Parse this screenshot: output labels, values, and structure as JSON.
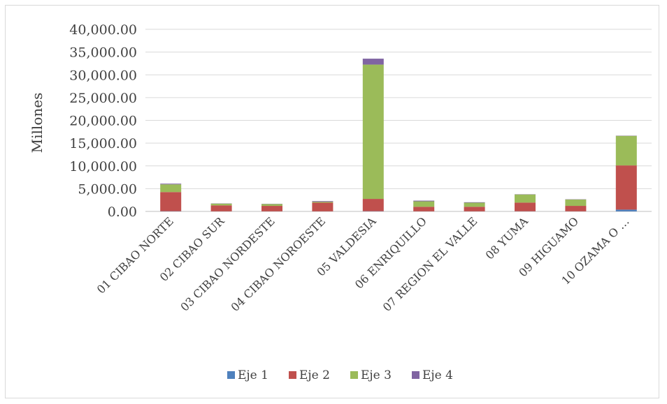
{
  "chart_data": {
    "type": "bar",
    "stacked": true,
    "title": "",
    "xlabel": "",
    "ylabel": "Millones",
    "ylim": [
      0,
      40000
    ],
    "yticks": [
      "0.00",
      "5,000.00",
      "10,000.00",
      "15,000.00",
      "20,000.00",
      "25,000.00",
      "30,000.00",
      "35,000.00",
      "40,000.00"
    ],
    "grid": true,
    "legend_position": "bottom",
    "categories": [
      "01 CIBAO NORTE",
      "02 CIBAO SUR",
      "03 CIBAO NORDESTE",
      "04 CIBAO NOROESTE",
      "05 VALDESIA",
      "06 ENRIQUILLO",
      "07 REGION EL VALLE",
      "08 YUMA",
      "09 HIGUAMO",
      "10 OZAMA O …"
    ],
    "series": [
      {
        "name": "Eje 1",
        "color": "#4f81bd",
        "values": [
          50,
          20,
          20,
          20,
          50,
          20,
          20,
          30,
          20,
          400
        ]
      },
      {
        "name": "Eje 2",
        "color": "#c0504d",
        "values": [
          4200,
          1300,
          1200,
          1900,
          2700,
          1000,
          1000,
          1900,
          1200,
          9700
        ]
      },
      {
        "name": "Eje 3",
        "color": "#9bbb59",
        "values": [
          1700,
          400,
          400,
          200,
          29500,
          1200,
          900,
          1800,
          1400,
          6500
        ]
      },
      {
        "name": "Eje 4",
        "color": "#8064a2",
        "values": [
          150,
          50,
          50,
          150,
          1300,
          150,
          100,
          50,
          50,
          50
        ]
      }
    ]
  }
}
